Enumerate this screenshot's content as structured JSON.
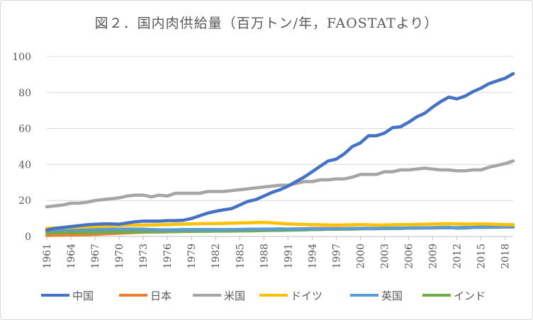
{
  "chart_data": {
    "type": "line",
    "title": "図２．国内肉供給量（百万トン/年，FAOSTATより）",
    "xlabel": "",
    "ylabel": "",
    "ylim": [
      0,
      100
    ],
    "yticks": [
      0,
      20,
      40,
      60,
      80,
      100
    ],
    "xlim": [
      1961,
      2019
    ],
    "xticks": [
      1961,
      1964,
      1967,
      1970,
      1973,
      1976,
      1979,
      1982,
      1985,
      1988,
      1991,
      1994,
      1997,
      2000,
      2003,
      2006,
      2009,
      2012,
      2015,
      2018
    ],
    "grid": "horizontal",
    "legend_position": "bottom",
    "x": [
      1961,
      1962,
      1963,
      1964,
      1965,
      1966,
      1967,
      1968,
      1969,
      1970,
      1971,
      1972,
      1973,
      1974,
      1975,
      1976,
      1977,
      1978,
      1979,
      1980,
      1981,
      1982,
      1983,
      1984,
      1985,
      1986,
      1987,
      1988,
      1989,
      1990,
      1991,
      1992,
      1993,
      1994,
      1995,
      1996,
      1997,
      1998,
      1999,
      2000,
      2001,
      2002,
      2003,
      2004,
      2005,
      2006,
      2007,
      2008,
      2009,
      2010,
      2011,
      2012,
      2013,
      2014,
      2015,
      2016,
      2017,
      2018,
      2019
    ],
    "series": [
      {
        "name": "中国",
        "color": "#4472C4",
        "values": [
          3.5,
          4.5,
          5,
          5.5,
          6,
          6.5,
          6.8,
          7,
          7,
          6.8,
          7.5,
          8.2,
          8.5,
          8.5,
          8.5,
          8.8,
          8.8,
          9,
          10,
          11.5,
          13,
          14,
          14.8,
          15.5,
          17.5,
          19.5,
          20.5,
          22.5,
          24.5,
          26,
          28,
          30.5,
          33,
          36,
          39,
          42,
          43,
          46,
          50,
          52,
          56,
          56,
          57.5,
          60.5,
          61,
          63.5,
          66.5,
          68.5,
          72,
          75,
          77.5,
          76.5,
          78,
          80.5,
          82.5,
          85,
          86.5,
          88,
          90.5
        ]
      },
      {
        "name": "日本",
        "color": "#ED7D31",
        "values": [
          0.6,
          0.7,
          0.8,
          0.9,
          1,
          1.1,
          1.2,
          1.4,
          1.6,
          1.8,
          2,
          2.2,
          2.4,
          2.5,
          2.5,
          2.6,
          2.8,
          2.9,
          3,
          3,
          3.1,
          3.2,
          3.3,
          3.4,
          3.5,
          3.6,
          3.7,
          3.8,
          3.9,
          4,
          4.1,
          4.2,
          4.3,
          4.4,
          4.4,
          4.4,
          4.4,
          4.4,
          4.5,
          4.5,
          4.5,
          4.5,
          4.5,
          4.5,
          4.6,
          4.6,
          4.7,
          4.7,
          4.7,
          4.8,
          4.8,
          4.9,
          4.9,
          5,
          5,
          5.1,
          5.1,
          5.2,
          5.2
        ]
      },
      {
        "name": "米国",
        "color": "#A5A5A5",
        "values": [
          16.5,
          17,
          17.5,
          18.5,
          18.5,
          19,
          20,
          20.5,
          21,
          21.5,
          22.5,
          23,
          23,
          22,
          23,
          22.5,
          24,
          24,
          24,
          24,
          25,
          25,
          25,
          25.5,
          26,
          26.5,
          27,
          27.5,
          28,
          28.5,
          28.5,
          29.5,
          30.5,
          30.5,
          31.5,
          31.5,
          32,
          32,
          33,
          34.5,
          34.5,
          34.5,
          36,
          36,
          37,
          37,
          37.5,
          38,
          37.5,
          37,
          37,
          36.5,
          36.5,
          37,
          37,
          38.5,
          39.5,
          40.5,
          42
        ]
      },
      {
        "name": "ドイツ",
        "color": "#FFC000",
        "values": [
          4.5,
          4.7,
          4.8,
          5,
          5.1,
          5.3,
          5.5,
          5.7,
          5.9,
          6,
          6.2,
          6.3,
          6.3,
          6.4,
          6.5,
          6.6,
          6.8,
          6.9,
          7,
          7.1,
          7.2,
          7.2,
          7.3,
          7.4,
          7.5,
          7.6,
          7.8,
          7.8,
          7.6,
          7.3,
          7,
          6.8,
          6.7,
          6.6,
          6.5,
          6.4,
          6.3,
          6.4,
          6.5,
          6.6,
          6.5,
          6.3,
          6.4,
          6.5,
          6.6,
          6.6,
          6.7,
          6.8,
          6.9,
          7,
          7.1,
          7,
          6.9,
          6.9,
          7,
          6.9,
          6.7,
          6.6,
          6.5
        ]
      },
      {
        "name": "英国",
        "color": "#5B9BD5",
        "values": [
          3.5,
          3.6,
          3.7,
          3.7,
          3.8,
          3.8,
          3.9,
          3.9,
          4,
          4,
          4.1,
          4.1,
          4,
          3.8,
          3.7,
          3.7,
          3.7,
          3.8,
          3.8,
          3.8,
          3.8,
          3.8,
          3.8,
          3.8,
          3.9,
          4,
          4,
          4.1,
          4.1,
          4.2,
          4.1,
          4.1,
          4.2,
          4.2,
          4.2,
          4.3,
          4.3,
          4.4,
          4.4,
          4.4,
          4.5,
          4.5,
          4.6,
          4.6,
          4.7,
          4.7,
          4.8,
          4.8,
          4.8,
          4.9,
          4.9,
          4.9,
          5,
          5,
          5.1,
          5.2,
          5.2,
          5.3,
          5.3
        ]
      },
      {
        "name": "インド",
        "color": "#70AD47",
        "values": [
          2,
          2.1,
          2.1,
          2.2,
          2.2,
          2.3,
          2.3,
          2.4,
          2.4,
          2.5,
          2.5,
          2.5,
          2.5,
          2.6,
          2.6,
          2.7,
          2.7,
          2.8,
          2.8,
          2.9,
          2.9,
          3,
          3,
          3,
          3.1,
          3.1,
          3.2,
          3.3,
          3.4,
          3.4,
          3.5,
          3.6,
          3.7,
          3.8,
          3.9,
          4,
          4,
          4.1,
          4.1,
          4.2,
          4.3,
          4.3,
          4.4,
          4.5,
          4.5,
          4.6,
          4.7,
          4.8,
          4.9,
          5,
          5.1,
          4.6,
          4.7,
          5,
          5.3,
          5.8,
          6,
          6.2,
          6.5
        ]
      }
    ]
  }
}
